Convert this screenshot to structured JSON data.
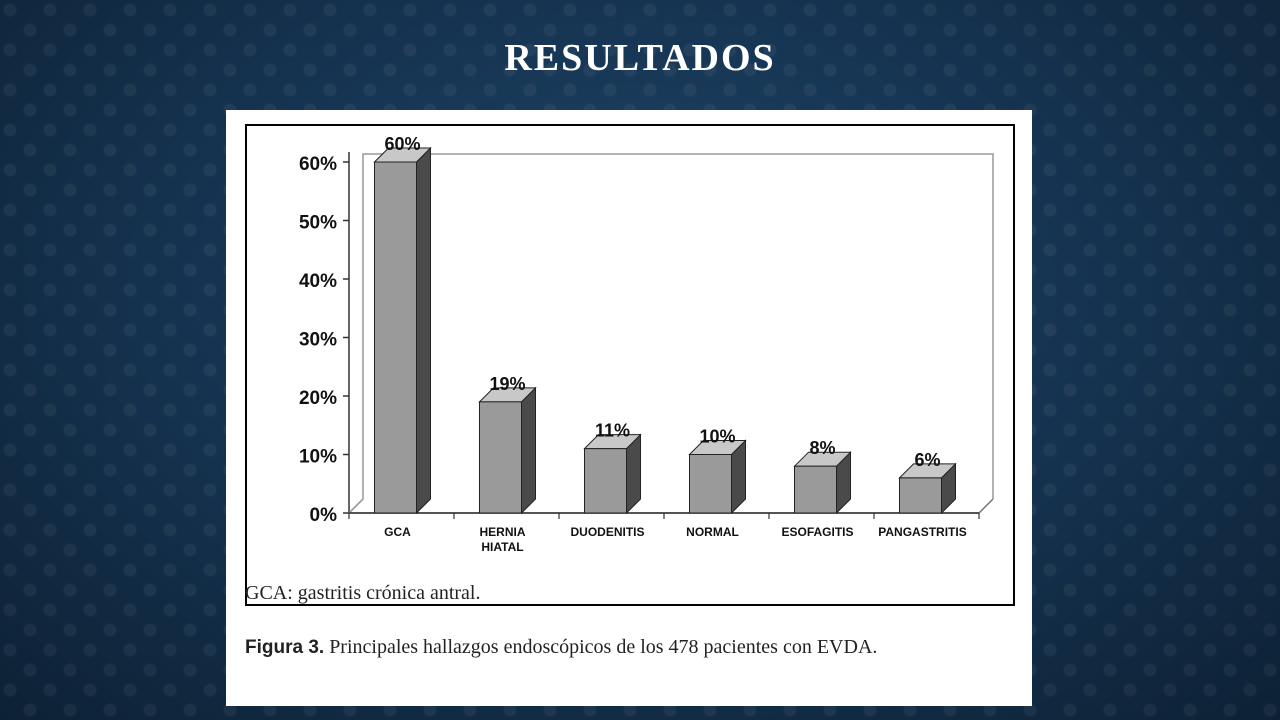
{
  "slide": {
    "title": "RESULTADOS"
  },
  "figure": {
    "note": "GCA: gastritis crónica antral.",
    "caption_label": "Figura 3.",
    "caption_text": " Principales hallazgos endoscópicos de los 478  pacientes con EVDA."
  },
  "chart_data": {
    "type": "bar",
    "categories": [
      "GCA",
      "HERNIA HIATAL",
      "DUODENITIS",
      "NORMAL",
      "ESOFAGITIS",
      "PANGASTRITIS"
    ],
    "category_lines": [
      [
        "GCA"
      ],
      [
        "HERNIA",
        "HIATAL"
      ],
      [
        "DUODENITIS"
      ],
      [
        "NORMAL"
      ],
      [
        "ESOFAGITIS"
      ],
      [
        "PANGASTRITIS"
      ]
    ],
    "values": [
      60,
      19,
      11,
      10,
      8,
      6
    ],
    "data_labels": [
      "60%",
      "19%",
      "11%",
      "10%",
      "8%",
      "6%"
    ],
    "yticks": [
      "0%",
      "10%",
      "20%",
      "30%",
      "40%",
      "50%",
      "60%"
    ],
    "ylim": [
      0,
      60
    ],
    "grid": false,
    "style": "3d-bar",
    "colors": {
      "bar_front": "#9a9a9a",
      "bar_side": "#4a4a4a",
      "bar_top": "#c8c8c8"
    }
  }
}
